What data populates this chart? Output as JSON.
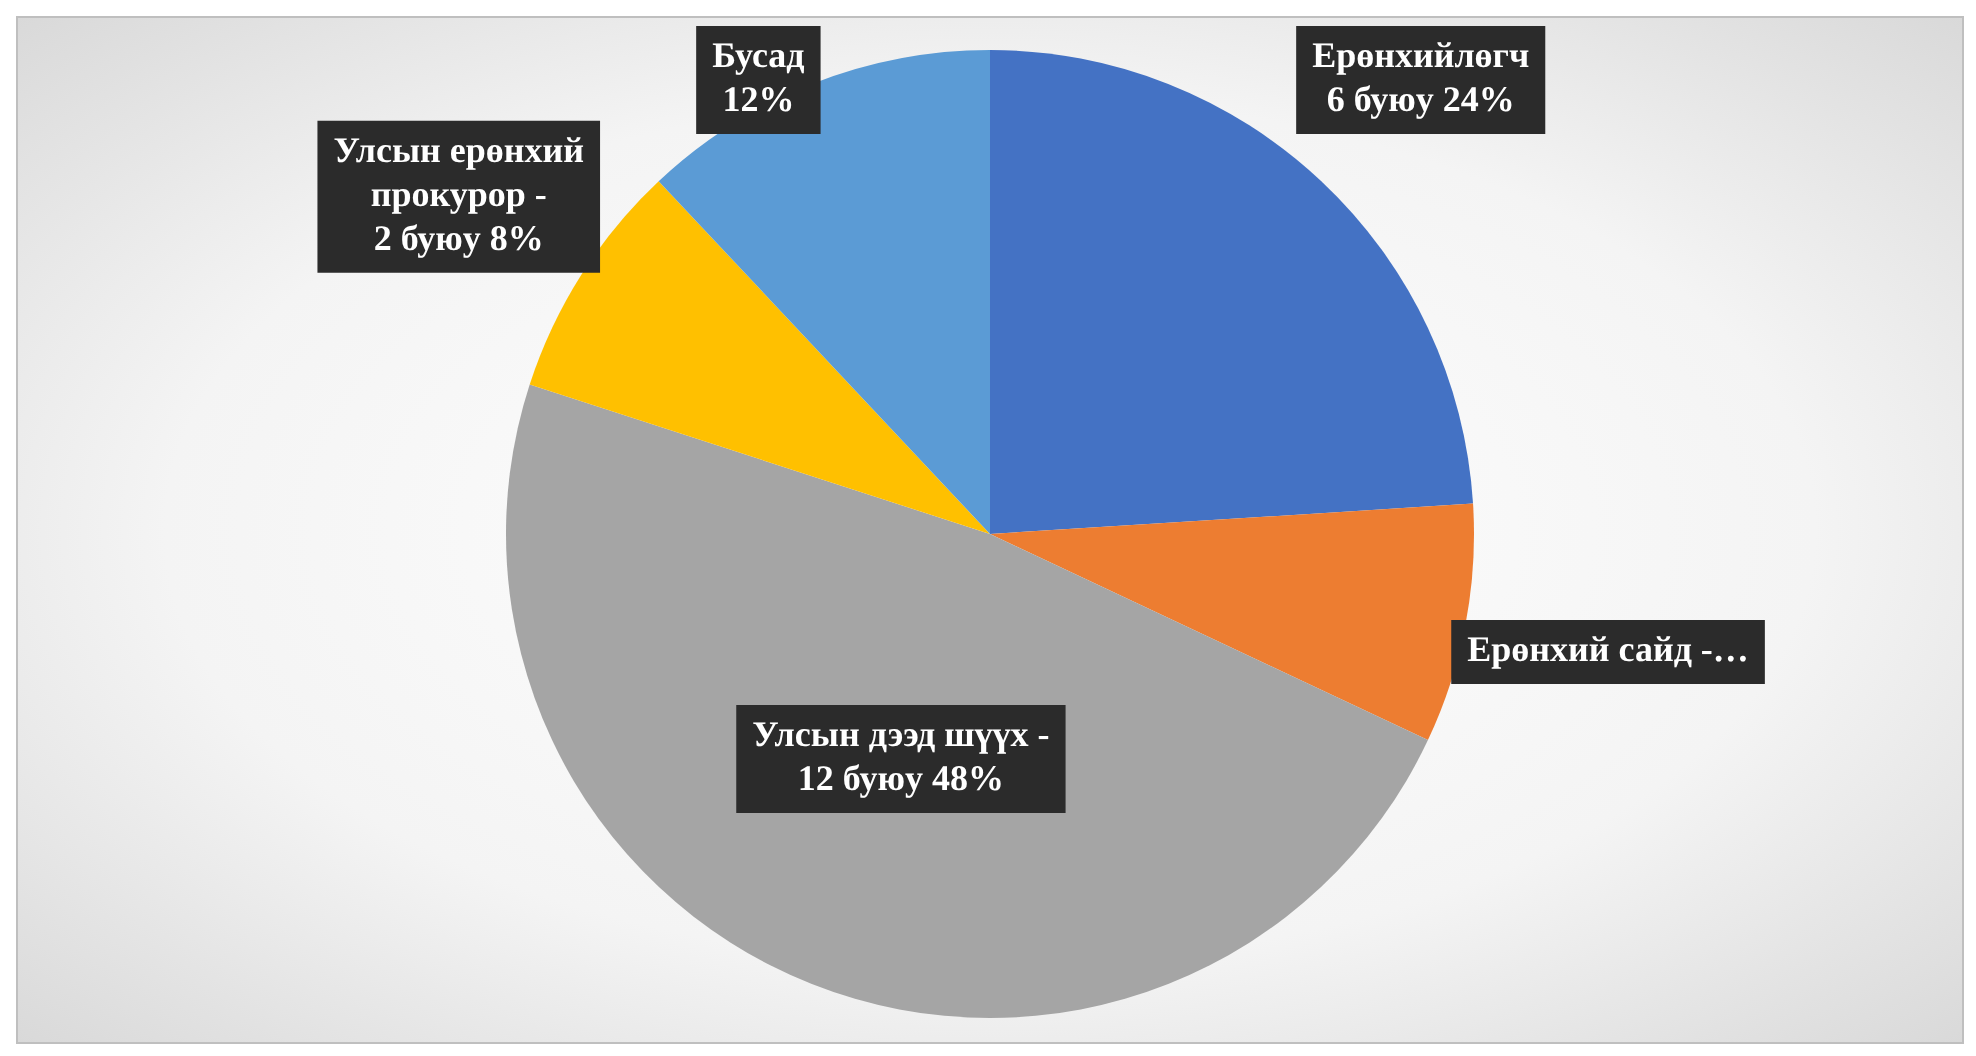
{
  "chart_data": {
    "type": "pie",
    "categories": [
      "Ерөнхийлөгч",
      "Ерөнхий сайд -…",
      "Улсын дээд шүүх -",
      "Улсын ерөнхий прокурор -",
      "Бусад"
    ],
    "values": [
      24,
      8,
      48,
      8,
      12
    ],
    "colors": [
      "#4472c4",
      "#ed7d31",
      "#a5a5a5",
      "#ffc000",
      "#5b9bd5"
    ],
    "value_labels": [
      "6 буюу 24%",
      null,
      "12 буюу 48%",
      "2 буюу 8%",
      "12%"
    ],
    "legend": false
  }
}
